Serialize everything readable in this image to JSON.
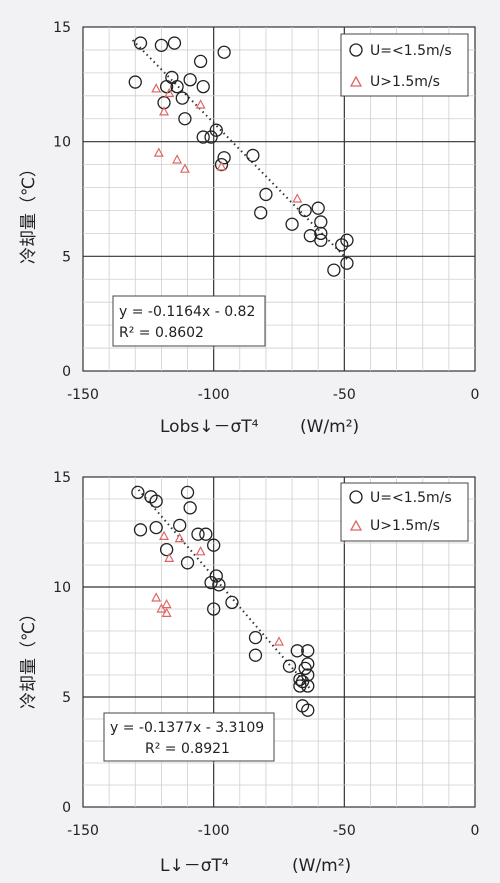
{
  "chart_data": [
    {
      "type": "scatter",
      "xlabel": "Lobs↓－σT⁴",
      "xunit": "(W/m²)",
      "ylabel": "冷却量（℃）",
      "xlim": [
        -150,
        0
      ],
      "ylim": [
        0,
        15
      ],
      "x_ticks": [
        "-150",
        "-100",
        "-50",
        "0"
      ],
      "y_ticks": [
        "0",
        "5",
        "10",
        "15"
      ],
      "grid": true,
      "legend_position": "top-right",
      "series": [
        {
          "name": "U=<1.5m/s",
          "marker": "circle",
          "color": "#222222",
          "points": [
            [
              -130,
              12.6
            ],
            [
              -128,
              14.3
            ],
            [
              -120,
              14.2
            ],
            [
              -115,
              14.3
            ],
            [
              -119,
              11.7
            ],
            [
              -118,
              12.4
            ],
            [
              -116,
              12.8
            ],
            [
              -114,
              12.4
            ],
            [
              -112,
              11.9
            ],
            [
              -111,
              11.0
            ],
            [
              -109,
              12.7
            ],
            [
              -105,
              13.5
            ],
            [
              -104,
              12.4
            ],
            [
              -96,
              13.9
            ],
            [
              -104,
              10.2
            ],
            [
              -101,
              10.2
            ],
            [
              -99,
              10.5
            ],
            [
              -97,
              9.0
            ],
            [
              -96,
              9.3
            ],
            [
              -85,
              9.4
            ],
            [
              -82,
              6.9
            ],
            [
              -80,
              7.7
            ],
            [
              -70,
              6.4
            ],
            [
              -65,
              7.0
            ],
            [
              -63,
              5.9
            ],
            [
              -60,
              7.1
            ],
            [
              -59,
              6.5
            ],
            [
              -59,
              5.7
            ],
            [
              -59,
              6.0
            ],
            [
              -54,
              4.4
            ],
            [
              -51,
              5.5
            ],
            [
              -49,
              5.7
            ],
            [
              -49,
              4.7
            ]
          ]
        },
        {
          "name": "U>1.5m/s",
          "marker": "triangle",
          "color": "#e06666",
          "points": [
            [
              -122,
              12.3
            ],
            [
              -119,
              11.3
            ],
            [
              -117,
              12.1
            ],
            [
              -105,
              11.6
            ],
            [
              -121,
              9.5
            ],
            [
              -114,
              9.2
            ],
            [
              -111,
              8.8
            ],
            [
              -97,
              8.9
            ],
            [
              -68,
              7.5
            ]
          ]
        }
      ],
      "trendline": {
        "slope": -0.1164,
        "intercept": -0.82,
        "equation": "y = -0.1164x - 0.82",
        "r2": "R² = 0.8602"
      }
    },
    {
      "type": "scatter",
      "xlabel": "L↓－σT⁴",
      "xunit": "(W/m²)",
      "ylabel": "冷却量（℃）",
      "xlim": [
        -150,
        0
      ],
      "ylim": [
        0,
        15
      ],
      "x_ticks": [
        "-150",
        "-100",
        "-50",
        "0"
      ],
      "y_ticks": [
        "0",
        "5",
        "10",
        "15"
      ],
      "grid": true,
      "legend_position": "top-right",
      "series": [
        {
          "name": "U=<1.5m/s",
          "marker": "circle",
          "color": "#222222",
          "points": [
            [
              -129,
              14.3
            ],
            [
              -128,
              12.6
            ],
            [
              -124,
              14.1
            ],
            [
              -122,
              13.9
            ],
            [
              -122,
              12.7
            ],
            [
              -118,
              11.7
            ],
            [
              -113,
              12.8
            ],
            [
              -110,
              14.3
            ],
            [
              -109,
              13.6
            ],
            [
              -106,
              12.4
            ],
            [
              -103,
              12.4
            ],
            [
              -110,
              11.1
            ],
            [
              -100,
              11.9
            ],
            [
              -101,
              10.2
            ],
            [
              -99,
              10.5
            ],
            [
              -98,
              10.1
            ],
            [
              -100,
              9.0
            ],
            [
              -93,
              9.3
            ],
            [
              -84,
              7.7
            ],
            [
              -84,
              6.9
            ],
            [
              -71,
              6.4
            ],
            [
              -68,
              7.1
            ],
            [
              -67,
              5.8
            ],
            [
              -67,
              5.5
            ],
            [
              -66,
              5.7
            ],
            [
              -65,
              6.3
            ],
            [
              -64,
              7.1
            ],
            [
              -64,
              6.5
            ],
            [
              -64,
              6.0
            ],
            [
              -64,
              5.5
            ],
            [
              -66,
              4.6
            ],
            [
              -64,
              4.4
            ]
          ]
        },
        {
          "name": "U>1.5m/s",
          "marker": "triangle",
          "color": "#e06666",
          "points": [
            [
              -119,
              12.3
            ],
            [
              -117,
              11.3
            ],
            [
              -113,
              12.2
            ],
            [
              -105,
              11.6
            ],
            [
              -122,
              9.5
            ],
            [
              -120,
              9.0
            ],
            [
              -118,
              9.2
            ],
            [
              -118,
              8.8
            ],
            [
              -75,
              7.5
            ]
          ]
        }
      ],
      "trendline": {
        "slope": -0.1377,
        "intercept": -3.3109,
        "equation": "y = -0.1377x - 3.3109",
        "r2": "R² = 0.8921"
      }
    }
  ]
}
